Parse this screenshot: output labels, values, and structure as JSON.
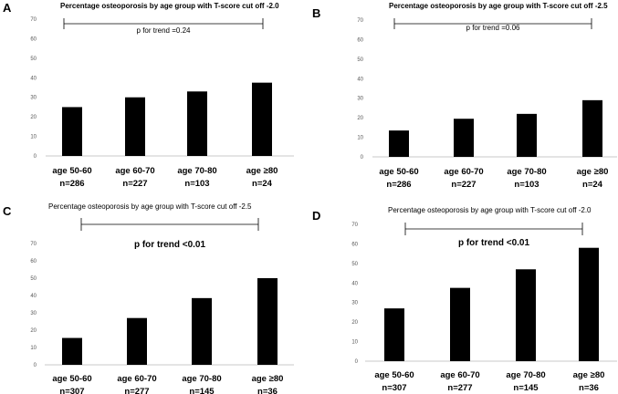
{
  "chart_data": [
    {
      "panel": "A",
      "type": "bar",
      "title": "Percentage osteoporosis by age group with T-score cut off -2.0",
      "trend_label": "p for trend =0.24",
      "categories": [
        "age 50-60",
        "age 60-70",
        "age 70-80",
        "age ≥80"
      ],
      "n_labels": [
        "n=286",
        "n=227",
        "n=103",
        "n=24"
      ],
      "values": [
        25,
        30,
        33,
        37.5
      ],
      "yticks": [
        0,
        10,
        20,
        30,
        40,
        50,
        60,
        70
      ],
      "ylim": [
        0,
        70
      ]
    },
    {
      "panel": "B",
      "type": "bar",
      "title": "Percentage osteoporosis by age group with T-score cut off -2.5",
      "trend_label": "p for trend =0.06",
      "categories": [
        "age 50-60",
        "age 60-70",
        "age 70-80",
        "age ≥80"
      ],
      "n_labels": [
        "n=286",
        "n=227",
        "n=103",
        "n=24"
      ],
      "values": [
        13.5,
        19.5,
        22,
        29
      ],
      "yticks": [
        0,
        10,
        20,
        30,
        40,
        50,
        60,
        70
      ],
      "ylim": [
        0,
        70
      ]
    },
    {
      "panel": "C",
      "type": "bar",
      "title": "Percentage osteoporosis by age group with T-score cut off -2.5",
      "trend_label": "p for trend <0.01",
      "categories": [
        "age 50-60",
        "age 60-70",
        "age 70-80",
        "age ≥80"
      ],
      "n_labels": [
        "n=307",
        "n=277",
        "n=145",
        "n=36"
      ],
      "values": [
        15.5,
        27,
        38.5,
        50
      ],
      "yticks": [
        0,
        10,
        20,
        30,
        40,
        50,
        60,
        70
      ],
      "ylim": [
        0,
        70
      ]
    },
    {
      "panel": "D",
      "type": "bar",
      "title": "Percentage osteoporosis by age group with T-score cut off -2.0",
      "trend_label": "p for trend <0.01",
      "categories": [
        "age 50-60",
        "age 60-70",
        "age 70-80",
        "age ≥80"
      ],
      "n_labels": [
        "n=307",
        "n=277",
        "n=145",
        "n=36"
      ],
      "values": [
        27,
        37.5,
        47,
        58
      ],
      "yticks": [
        0,
        10,
        20,
        30,
        40,
        50,
        60,
        70
      ],
      "ylim": [
        0,
        70
      ]
    }
  ]
}
